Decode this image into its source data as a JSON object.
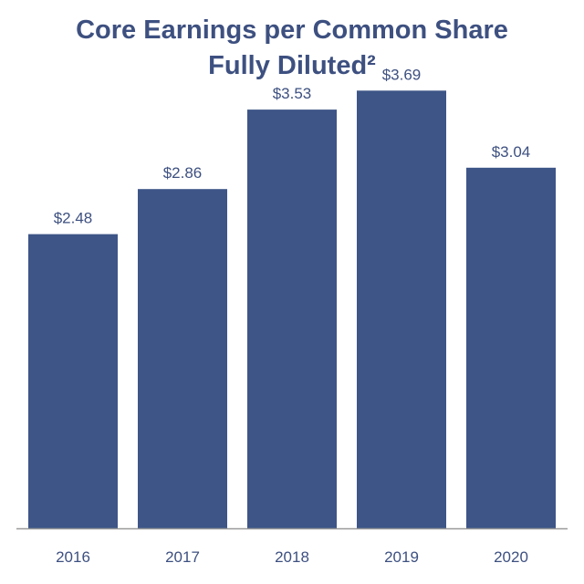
{
  "chart_data": {
    "type": "bar",
    "title": "Core Earnings per Common Share",
    "subtitle": "Fully Diluted²",
    "categories": [
      "2016",
      "2017",
      "2018",
      "2019",
      "2020"
    ],
    "values": [
      2.48,
      2.86,
      3.53,
      3.69,
      3.04
    ],
    "data_labels": [
      "$2.48",
      "$2.86",
      "$3.53",
      "$3.69",
      "$3.04"
    ],
    "ylim": [
      0,
      4.0
    ],
    "grid": false,
    "legend": "none",
    "colors": {
      "bar": "#3d5587",
      "text": "#3d5080",
      "axis": "#999999"
    }
  }
}
